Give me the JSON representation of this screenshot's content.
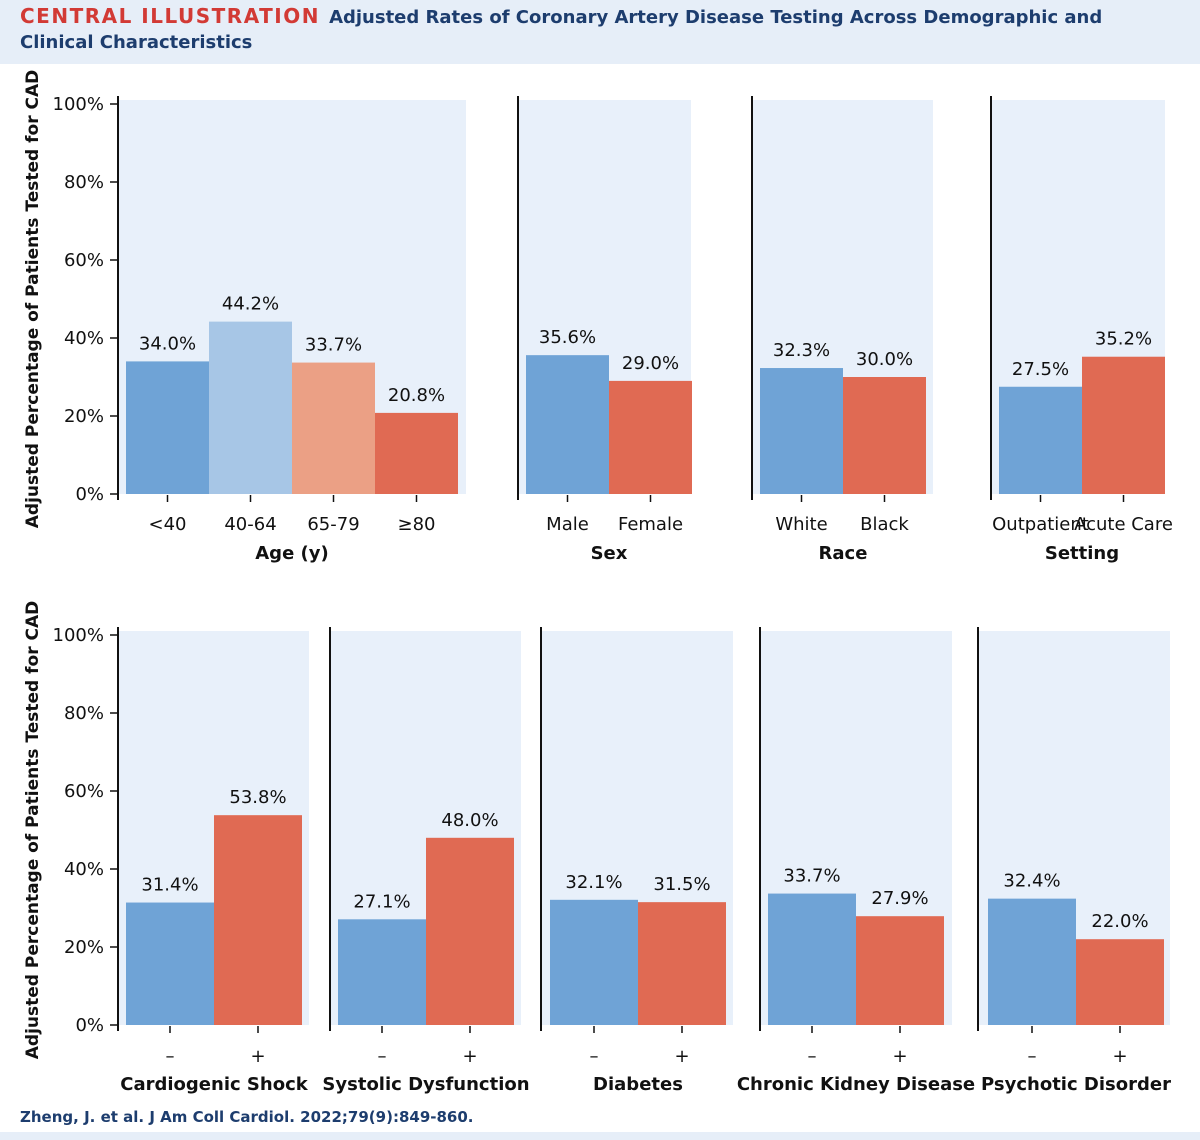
{
  "header": {
    "label": "CENTRAL ILLUSTRATION",
    "title": "Adjusted Rates of Coronary Artery Disease Testing Across Demographic and Clinical Characteristics"
  },
  "citation": "Zheng, J. et al. J Am Coll Cardiol. 2022;79(9):849-860.",
  "colors": {
    "blue": "#6fa3d6",
    "light_blue": "#a7c6e6",
    "light_red": "#eba085",
    "red": "#e06a53",
    "panel_bg": "#e8f0fa"
  },
  "chart_data": [
    {
      "type": "bar",
      "ylabel": "Adjusted Percentage of Patients Tested for CAD",
      "ylim": [
        0,
        100
      ],
      "yticks": [
        "0%",
        "20%",
        "40%",
        "60%",
        "80%",
        "100%"
      ],
      "panels": [
        {
          "xlabel": "Age (y)",
          "categories": [
            "<40",
            "40-64",
            "65-79",
            "≥80"
          ],
          "values": [
            34.0,
            44.2,
            33.7,
            20.8
          ],
          "labels": [
            "34.0%",
            "44.2%",
            "33.7%",
            "20.8%"
          ],
          "colors": [
            "blue",
            "light_blue",
            "light_red",
            "red"
          ]
        },
        {
          "xlabel": "Sex",
          "categories": [
            "Male",
            "Female"
          ],
          "values": [
            35.6,
            29.0
          ],
          "labels": [
            "35.6%",
            "29.0%"
          ],
          "colors": [
            "blue",
            "red"
          ]
        },
        {
          "xlabel": "Race",
          "categories": [
            "White",
            "Black"
          ],
          "values": [
            32.3,
            30.0
          ],
          "labels": [
            "32.3%",
            "30.0%"
          ],
          "colors": [
            "blue",
            "red"
          ]
        },
        {
          "xlabel": "Setting",
          "categories": [
            "Outpatient",
            "Acute Care"
          ],
          "values": [
            27.5,
            35.2
          ],
          "labels": [
            "27.5%",
            "35.2%"
          ],
          "colors": [
            "blue",
            "red"
          ]
        }
      ]
    },
    {
      "type": "bar",
      "ylabel": "Adjusted Percentage of Patients Tested for CAD",
      "ylim": [
        0,
        100
      ],
      "yticks": [
        "0%",
        "20%",
        "40%",
        "60%",
        "80%",
        "100%"
      ],
      "panels": [
        {
          "xlabel": "Cardiogenic Shock",
          "categories": [
            "–",
            "+"
          ],
          "values": [
            31.4,
            53.8
          ],
          "labels": [
            "31.4%",
            "53.8%"
          ],
          "colors": [
            "blue",
            "red"
          ]
        },
        {
          "xlabel": "Systolic Dysfunction",
          "categories": [
            "–",
            "+"
          ],
          "values": [
            27.1,
            48.0
          ],
          "labels": [
            "27.1%",
            "48.0%"
          ],
          "colors": [
            "blue",
            "red"
          ]
        },
        {
          "xlabel": "Diabetes",
          "categories": [
            "–",
            "+"
          ],
          "values": [
            32.1,
            31.5
          ],
          "labels": [
            "32.1%",
            "31.5%"
          ],
          "colors": [
            "blue",
            "red"
          ]
        },
        {
          "xlabel": "Chronic Kidney Disease",
          "categories": [
            "–",
            "+"
          ],
          "values": [
            33.7,
            27.9
          ],
          "labels": [
            "33.7%",
            "27.9%"
          ],
          "colors": [
            "blue",
            "red"
          ]
        },
        {
          "xlabel": "Psychotic Disorder",
          "categories": [
            "–",
            "+"
          ],
          "values": [
            32.4,
            22.0
          ],
          "labels": [
            "32.4%",
            "22.0%"
          ],
          "colors": [
            "blue",
            "red"
          ]
        }
      ]
    }
  ]
}
